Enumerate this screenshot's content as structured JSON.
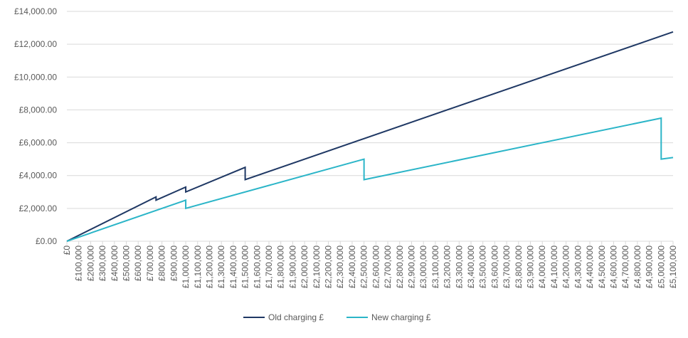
{
  "chart_data": {
    "type": "line",
    "series": [
      {
        "name": "Old charging £",
        "color": "#1f3864",
        "x": [
          0,
          750000,
          750000,
          1000000,
          1000000,
          1500000,
          1500000,
          5100000
        ],
        "values": [
          0,
          2700,
          2500,
          3300,
          3000,
          4500,
          3750,
          12750
        ]
      },
      {
        "name": "New charging £",
        "color": "#2bb5c8",
        "x": [
          0,
          1000000,
          1000000,
          2500000,
          2500000,
          5000000,
          5000000,
          5100000
        ],
        "values": [
          0,
          2500,
          2000,
          5000,
          3750,
          7500,
          5000,
          5100
        ]
      }
    ],
    "xlim": [
      0,
      5100000
    ],
    "xticks": [
      {
        "value": 0,
        "label": "£0"
      },
      {
        "value": 100000,
        "label": "£100,000"
      },
      {
        "value": 200000,
        "label": "£200,000"
      },
      {
        "value": 300000,
        "label": "£300,000"
      },
      {
        "value": 400000,
        "label": "£400,000"
      },
      {
        "value": 500000,
        "label": "£500,000"
      },
      {
        "value": 600000,
        "label": "£600,000"
      },
      {
        "value": 700000,
        "label": "£700,000"
      },
      {
        "value": 800000,
        "label": "£800,000"
      },
      {
        "value": 900000,
        "label": "£900,000"
      },
      {
        "value": 1000000,
        "label": "£1,000,000"
      },
      {
        "value": 1100000,
        "label": "£1,100,000"
      },
      {
        "value": 1200000,
        "label": "£1,200,000"
      },
      {
        "value": 1300000,
        "label": "£1,300,000"
      },
      {
        "value": 1400000,
        "label": "£1,400,000"
      },
      {
        "value": 1500000,
        "label": "£1,500,000"
      },
      {
        "value": 1600000,
        "label": "£1,600,000"
      },
      {
        "value": 1700000,
        "label": "£1,700,000"
      },
      {
        "value": 1800000,
        "label": "£1,800,000"
      },
      {
        "value": 1900000,
        "label": "£1,900,000"
      },
      {
        "value": 2000000,
        "label": "£2,000,000"
      },
      {
        "value": 2100000,
        "label": "£2,100,000"
      },
      {
        "value": 2200000,
        "label": "£2,200,000"
      },
      {
        "value": 2300000,
        "label": "£2,300,000"
      },
      {
        "value": 2400000,
        "label": "£2,400,000"
      },
      {
        "value": 2500000,
        "label": "£2,500,000"
      },
      {
        "value": 2600000,
        "label": "£2,600,000"
      },
      {
        "value": 2700000,
        "label": "£2,700,000"
      },
      {
        "value": 2800000,
        "label": "£2,800,000"
      },
      {
        "value": 2900000,
        "label": "£2,900,000"
      },
      {
        "value": 3000000,
        "label": "£3,000,000"
      },
      {
        "value": 3100000,
        "label": "£3,100,000"
      },
      {
        "value": 3200000,
        "label": "£3,200,000"
      },
      {
        "value": 3300000,
        "label": "£3,300,000"
      },
      {
        "value": 3400000,
        "label": "£3,400,000"
      },
      {
        "value": 3500000,
        "label": "£3,500,000"
      },
      {
        "value": 3600000,
        "label": "£3,600,000"
      },
      {
        "value": 3700000,
        "label": "£3,700,000"
      },
      {
        "value": 3800000,
        "label": "£3,800,000"
      },
      {
        "value": 3900000,
        "label": "£3,900,000"
      },
      {
        "value": 4000000,
        "label": "£4,000,000"
      },
      {
        "value": 4100000,
        "label": "£4,100,000"
      },
      {
        "value": 4200000,
        "label": "£4,200,000"
      },
      {
        "value": 4300000,
        "label": "£4,300,000"
      },
      {
        "value": 4400000,
        "label": "£4,400,000"
      },
      {
        "value": 4500000,
        "label": "£4,500,000"
      },
      {
        "value": 4600000,
        "label": "£4,600,000"
      },
      {
        "value": 4700000,
        "label": "£4,700,000"
      },
      {
        "value": 4800000,
        "label": "£4,800,000"
      },
      {
        "value": 4900000,
        "label": "£4,900,000"
      },
      {
        "value": 5000000,
        "label": "£5,000,000"
      },
      {
        "value": 5100000,
        "label": "£5,100,000"
      }
    ],
    "ylim": [
      0,
      14000
    ],
    "yticks": [
      {
        "value": 0,
        "label": "£0.00"
      },
      {
        "value": 2000,
        "label": "£2,000.00"
      },
      {
        "value": 4000,
        "label": "£4,000.00"
      },
      {
        "value": 6000,
        "label": "£6,000.00"
      },
      {
        "value": 8000,
        "label": "£8,000.00"
      },
      {
        "value": 10000,
        "label": "£10,000.00"
      },
      {
        "value": 12000,
        "label": "£12,000.00"
      },
      {
        "value": 14000,
        "label": "£14,000.00"
      }
    ],
    "grid": true,
    "legend": "bottom"
  }
}
